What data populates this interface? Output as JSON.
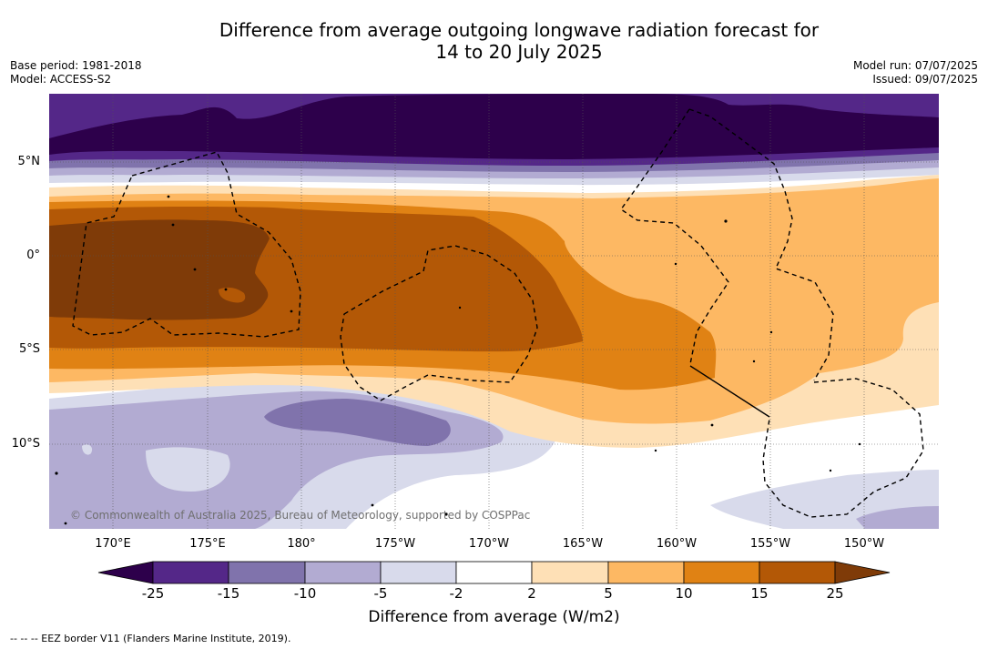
{
  "header": {
    "title_line1": "Difference from average outgoing longwave radiation forecast for",
    "title_line2": "14 to 20 July 2025",
    "base_period": "Base period: 1981-2018",
    "model": "Model: ACCESS-S2",
    "model_run": "Model run: 07/07/2025",
    "issued": "Issued: 09/07/2025"
  },
  "map": {
    "longitude_labels": [
      "170°E",
      "175°E",
      "180°",
      "175°W",
      "170°W",
      "165°W",
      "160°W",
      "155°W",
      "150°W"
    ],
    "latitude_labels": [
      "5°N",
      "0°",
      "5°S",
      "10°S"
    ],
    "credit": "© Commonwealth of Australia 2025, Bureau of Meteorology, supported by COSPPac",
    "colors": {
      "lt_-25": "#2d004b",
      "-25_-15": "#542788",
      "-15_-10": "#8073ac",
      "-10_-5": "#b2abd2",
      "-5_-2": "#d8daeb",
      "-2_2": "#ffffff",
      "2_5": "#fee0b6",
      "5_10": "#fdb863",
      "10_15": "#e08214",
      "15_25": "#b35806",
      "gt_25": "#7f3b08"
    }
  },
  "colorbar": {
    "ticks": [
      "-25",
      "-15",
      "-10",
      "-5",
      "-2",
      "2",
      "5",
      "10",
      "15",
      "25"
    ],
    "label": "Difference from average (W/m2)"
  },
  "footnote": "--  --  -- EEZ border V11 (Flanders Marine Institute, 2019)."
}
